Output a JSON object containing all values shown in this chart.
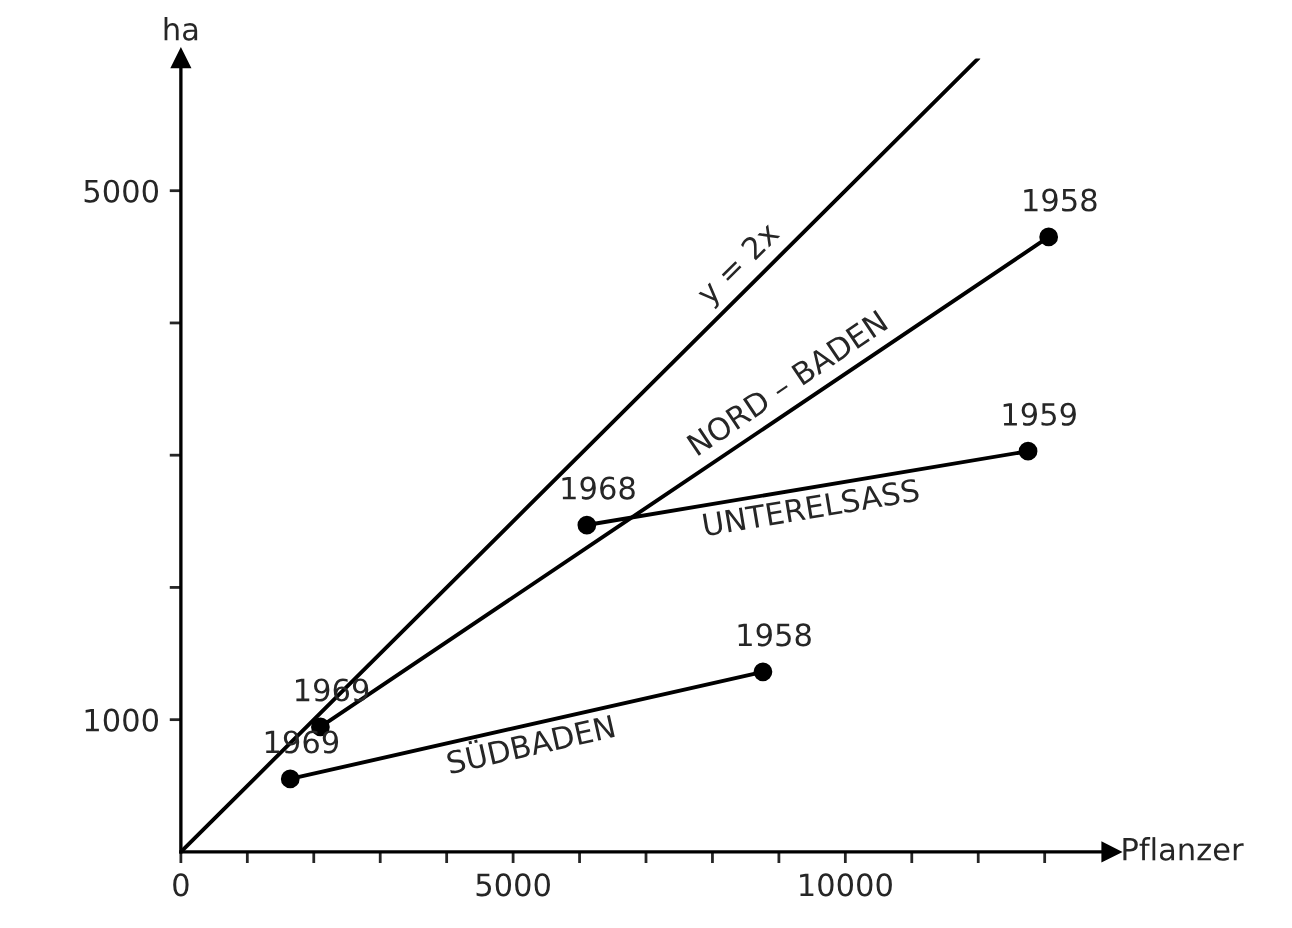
{
  "chart_data": {
    "type": "line",
    "xlabel": "Pflanzer",
    "ylabel": "ha",
    "xlim": [
      0,
      14000
    ],
    "ylim": [
      0,
      6000
    ],
    "xticks": [
      0,
      {
        "value": 1000,
        "label": null
      },
      {
        "value": 2000,
        "label": null
      },
      {
        "value": 3000,
        "label": null
      },
      {
        "value": 4000,
        "label": null
      },
      5000,
      {
        "value": 6000,
        "label": null
      },
      {
        "value": 7000,
        "label": null
      },
      {
        "value": 8000,
        "label": null
      },
      {
        "value": 9000,
        "label": null
      },
      10000,
      {
        "value": 11000,
        "label": null
      },
      {
        "value": 12000,
        "label": null
      },
      {
        "value": 13000,
        "label": null
      }
    ],
    "yticks": [
      1000,
      {
        "value": 2000,
        "label": null
      },
      {
        "value": 3000,
        "label": null
      },
      {
        "value": 4000,
        "label": null
      },
      5000
    ],
    "grid": false,
    "legend": false,
    "line_style": "solid",
    "series": [
      {
        "name": "y = 2x",
        "color": "#000000",
        "marker": "none",
        "x": [
          0,
          12000
        ],
        "values": [
          0,
          6000
        ]
      },
      {
        "name": "NORD – BADEN",
        "color": "#000000",
        "marker": "circle",
        "x": [
          2100,
          13060
        ],
        "values": [
          945,
          4650
        ]
      },
      {
        "name": "UNTERELSASS",
        "color": "#000000",
        "marker": "circle",
        "x": [
          6110,
          12750
        ],
        "values": [
          2472,
          3030
        ]
      },
      {
        "name": "SÜDBADEN",
        "color": "#000000",
        "marker": "circle",
        "x": [
          1646,
          8760
        ],
        "values": [
          552,
          1362
        ]
      }
    ],
    "annotations": [
      {
        "text": "1969",
        "x": 2100,
        "y": 945
      },
      {
        "text": "1968",
        "x": 6110,
        "y": 2472
      },
      {
        "text": "1958",
        "x": 13060,
        "y": 4650
      },
      {
        "text": "1959",
        "x": 12750,
        "y": 3030
      },
      {
        "text": "1969",
        "x": 1646,
        "y": 552
      },
      {
        "text": "1958",
        "x": 8760,
        "y": 1362
      }
    ]
  }
}
